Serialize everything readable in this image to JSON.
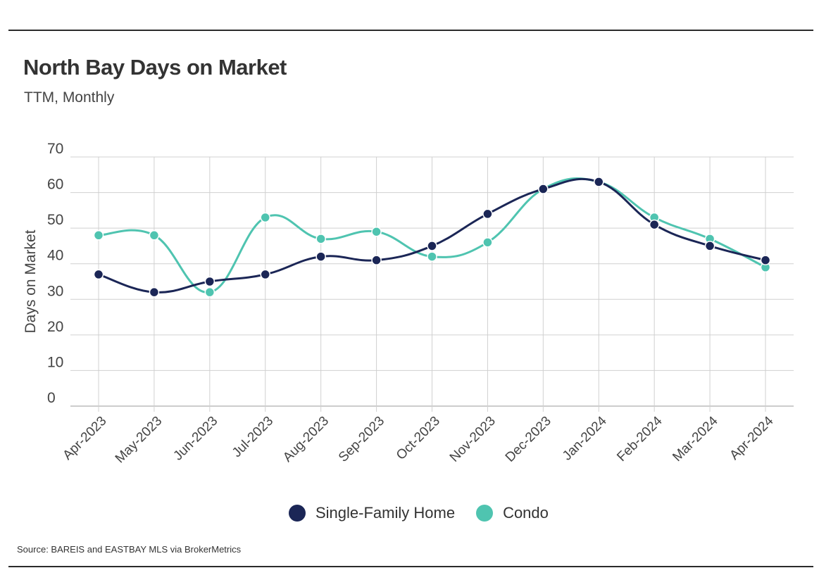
{
  "title": "North Bay Days on Market",
  "subtitle": "TTM, Monthly",
  "source": "Source:  BAREIS and EASTBAY MLS via BrokerMetrics",
  "colors": {
    "sfh": "#1b2656",
    "condo": "#4fc4b0",
    "grid": "#d0d0d0",
    "axis": "#9a9a9a"
  },
  "legend": [
    {
      "label": "Single-Family Home",
      "color": "#1b2656"
    },
    {
      "label": "Condo",
      "color": "#4fc4b0"
    }
  ],
  "chart_data": {
    "type": "line",
    "title": "North Bay Days on Market",
    "subtitle": "TTM, Monthly",
    "xlabel": "",
    "ylabel": "Days on Market",
    "ylim": [
      0,
      70
    ],
    "yticks": [
      0,
      10,
      20,
      30,
      40,
      50,
      60,
      70
    ],
    "grid": true,
    "legend_position": "bottom",
    "categories": [
      "Apr-2023",
      "May-2023",
      "Jun-2023",
      "Jul-2023",
      "Aug-2023",
      "Sep-2023",
      "Oct-2023",
      "Nov-2023",
      "Dec-2023",
      "Jan-2024",
      "Feb-2024",
      "Mar-2024",
      "Apr-2024"
    ],
    "series": [
      {
        "name": "Single-Family Home",
        "color": "#1b2656",
        "values": [
          37,
          32,
          35,
          37,
          42,
          41,
          45,
          54,
          61,
          63,
          51,
          45,
          41
        ]
      },
      {
        "name": "Condo",
        "color": "#4fc4b0",
        "values": [
          48,
          48,
          32,
          53,
          47,
          49,
          42,
          46,
          61,
          63,
          53,
          47,
          39
        ]
      }
    ]
  }
}
